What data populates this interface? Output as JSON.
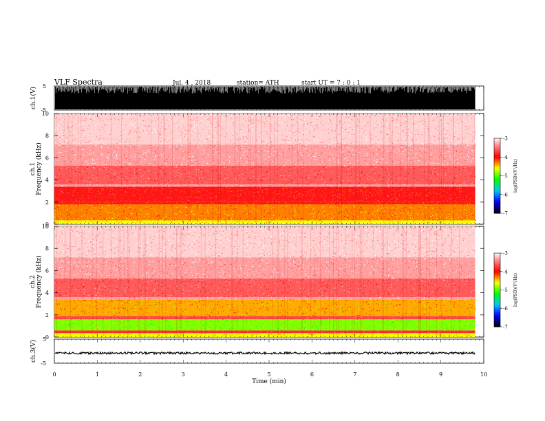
{
  "header": {
    "title": "VLF  Spectra",
    "date": "Jul.  4  , 2018",
    "station": "station= ATH",
    "start": "start  UT  =    7  : 0   : 1"
  },
  "colors": {
    "background": "#ffffff",
    "axes": "#000000",
    "waveform": "#000000",
    "colormap": [
      "#000000",
      "#0000ff",
      "#00ffff",
      "#00ff00",
      "#ffff00",
      "#ff0000",
      "#ffffff"
    ]
  },
  "chart_data": [
    {
      "id": "ch1-waveform",
      "type": "line",
      "ylabel": "ch.1(V)",
      "ylim": [
        -5,
        5
      ],
      "yticks": [
        "5",
        "-5"
      ],
      "xlim": [
        0,
        10
      ],
      "data_end_min": 9.8,
      "amplitude_envelope": [
        -5,
        5
      ]
    },
    {
      "id": "ch1-spectrogram",
      "type": "heatmap",
      "ylabel": "ch.1\nFrequency  (kHz)",
      "xlim": [
        0,
        10
      ],
      "ylim": [
        0,
        10
      ],
      "yticks": [
        "10",
        "8",
        "6",
        "4",
        "2",
        "0"
      ],
      "data_end_min": 9.8,
      "bands_kHz": [
        {
          "from": 0,
          "to": 0.35,
          "log_psd": -4.6
        },
        {
          "from": 0.35,
          "to": 1.8,
          "log_psd": -4.3
        },
        {
          "from": 1.8,
          "to": 2.0,
          "log_psd": -3.9
        },
        {
          "from": 2.0,
          "to": 3.4,
          "log_psd": -3.9
        },
        {
          "from": 3.4,
          "to": 3.6,
          "log_psd": -3.3
        },
        {
          "from": 3.6,
          "to": 5.3,
          "log_psd": -3.6
        },
        {
          "from": 5.3,
          "to": 7.2,
          "log_psd": -3.3
        },
        {
          "from": 7.2,
          "to": 10,
          "log_psd": -3.15
        }
      ],
      "colorbar": {
        "label": "log(PSD)(V²/Hz)",
        "range": [
          -7,
          -3
        ],
        "ticks": [
          "-3",
          "-4",
          "-5",
          "-6",
          "-7"
        ]
      }
    },
    {
      "id": "ch2-spectrogram",
      "type": "heatmap",
      "ylabel": "ch.2\nFrequency  (kHz)",
      "xlim": [
        0,
        10
      ],
      "ylim": [
        0,
        10
      ],
      "yticks": [
        "10",
        "8",
        "6",
        "4",
        "2",
        "0"
      ],
      "data_end_min": 9.8,
      "bands_kHz": [
        {
          "from": 0,
          "to": 0.35,
          "log_psd": -4.6
        },
        {
          "from": 0.35,
          "to": 0.6,
          "log_psd": -3.8
        },
        {
          "from": 0.6,
          "to": 1.6,
          "log_psd": -4.9
        },
        {
          "from": 1.6,
          "to": 1.9,
          "log_psd": -3.7
        },
        {
          "from": 1.9,
          "to": 3.4,
          "log_psd": -4.4
        },
        {
          "from": 3.4,
          "to": 3.6,
          "log_psd": -3.3
        },
        {
          "from": 3.6,
          "to": 5.3,
          "log_psd": -3.6
        },
        {
          "from": 5.3,
          "to": 7.2,
          "log_psd": -3.3
        },
        {
          "from": 7.2,
          "to": 10,
          "log_psd": -3.15
        }
      ],
      "colorbar": {
        "label": "log(PSD)(V²/Hz)",
        "range": [
          -7,
          -3
        ],
        "ticks": [
          "-3",
          "-4",
          "-5",
          "-6",
          "-7"
        ]
      }
    },
    {
      "id": "ch3-waveform",
      "type": "line",
      "ylabel": "ch.3(V)",
      "ylim": [
        -5,
        5
      ],
      "yticks": [
        "5",
        "-5"
      ],
      "xlim": [
        0,
        10
      ],
      "data_end_min": 9.8,
      "dc_level": -0.8
    }
  ],
  "x_axis": {
    "label": "Time  (min)",
    "ticks": [
      "0",
      "1",
      "2",
      "3",
      "4",
      "5",
      "6",
      "7",
      "8",
      "9",
      "10"
    ]
  }
}
